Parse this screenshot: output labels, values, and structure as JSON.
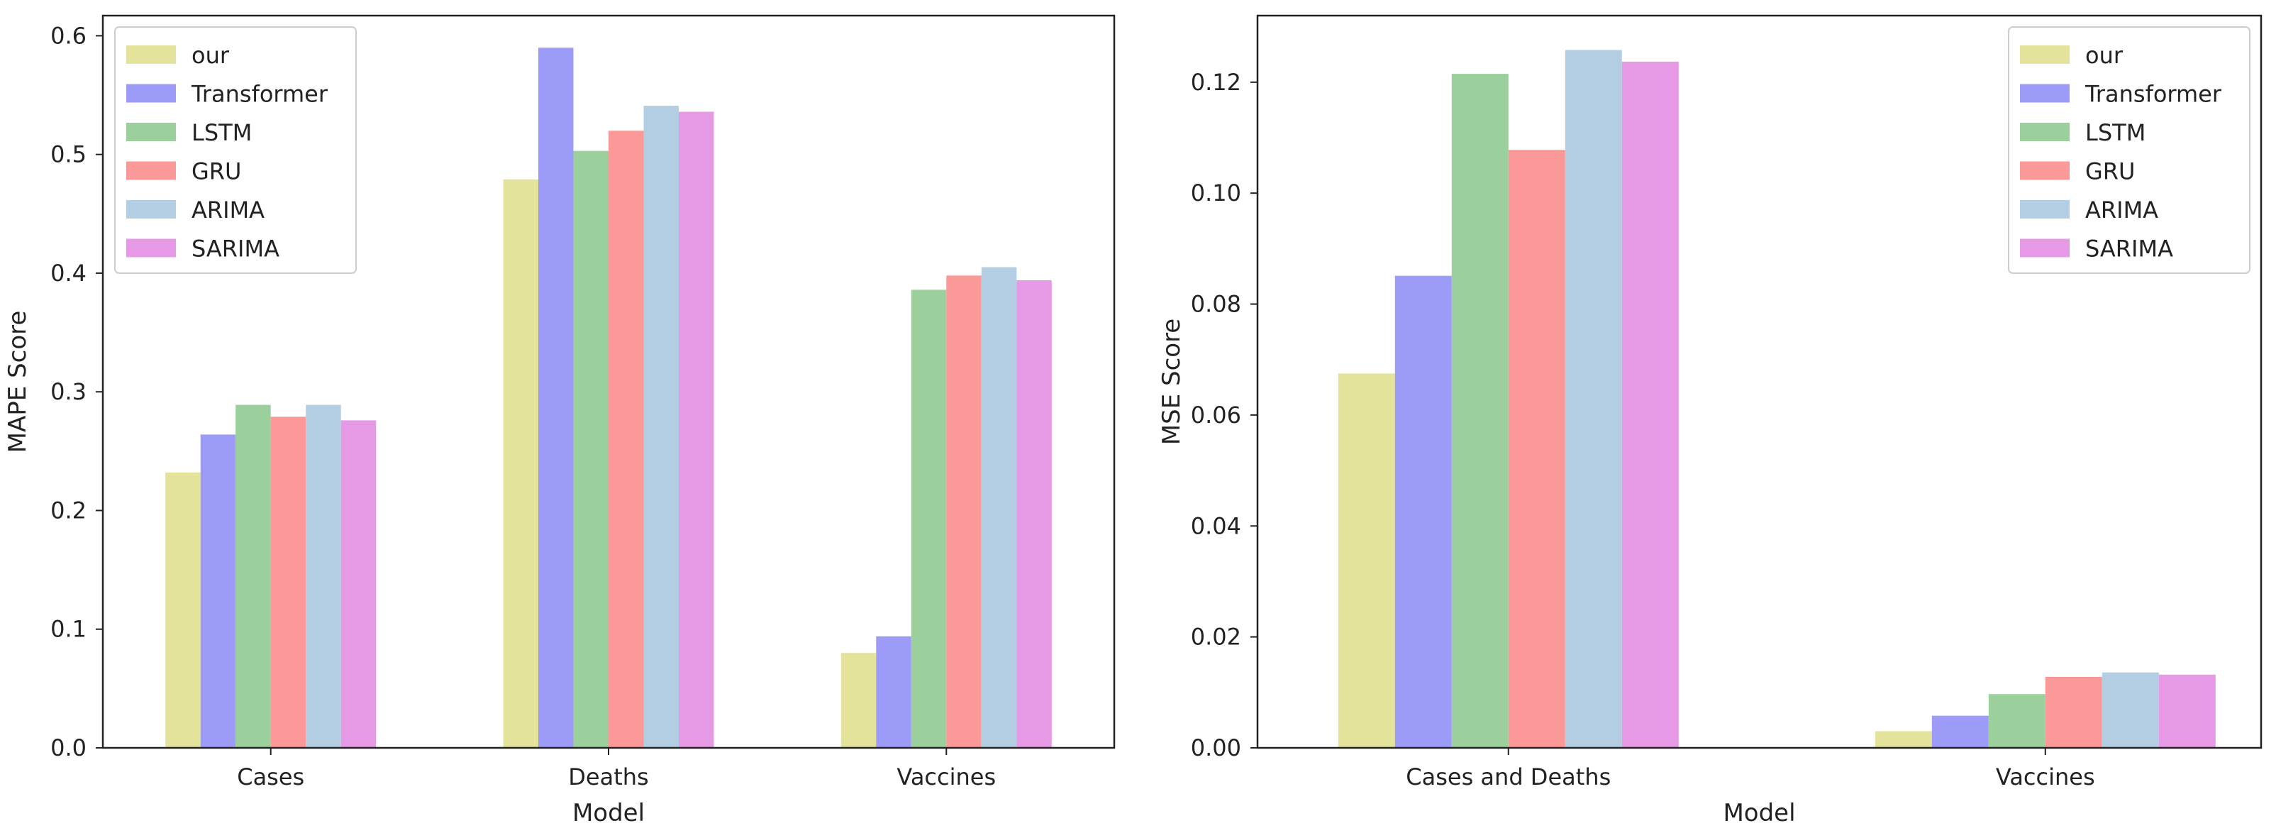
{
  "legend": {
    "entries": [
      {
        "name": "our",
        "color": "#e3e39b"
      },
      {
        "name": " Transformer",
        "color": "#9c9cf8"
      },
      {
        "name": "LSTM",
        "color": "#9bcf9b"
      },
      {
        "name": "GRU",
        "color": "#fb9999"
      },
      {
        "name": "ARIMA",
        "color": "#b3cde2"
      },
      {
        "name": "SARIMA",
        "color": "#e69ae5"
      }
    ]
  },
  "chart_data": [
    {
      "type": "bar",
      "title": "",
      "xlabel": "Model",
      "ylabel": "MAPE Score",
      "ylim": [
        0,
        0.617
      ],
      "yticks": [
        0.0,
        0.1,
        0.2,
        0.3,
        0.4,
        0.5,
        0.6
      ],
      "ytick_labels": [
        "0.0",
        "0.1",
        "0.2",
        "0.3",
        "0.4",
        "0.5",
        "0.6"
      ],
      "categories": [
        "Cases",
        "Deaths",
        "Vaccines"
      ],
      "series": [
        {
          "name": "our",
          "values": [
            0.232,
            0.479,
            0.08
          ]
        },
        {
          "name": " Transformer",
          "values": [
            0.264,
            0.59,
            0.094
          ]
        },
        {
          "name": "LSTM",
          "values": [
            0.289,
            0.503,
            0.386
          ]
        },
        {
          "name": "GRU",
          "values": [
            0.279,
            0.52,
            0.398
          ]
        },
        {
          "name": "ARIMA",
          "values": [
            0.289,
            0.541,
            0.405
          ]
        },
        {
          "name": "SARIMA",
          "values": [
            0.276,
            0.536,
            0.394
          ]
        }
      ],
      "legend_position": "top-left",
      "grid": false
    },
    {
      "type": "bar",
      "title": "",
      "xlabel": "Model",
      "ylabel": "MSE Score",
      "ylim": [
        0,
        0.132
      ],
      "yticks": [
        0.0,
        0.02,
        0.04,
        0.06,
        0.08,
        0.1,
        0.12
      ],
      "ytick_labels": [
        "0.00",
        "0.02",
        "0.04",
        "0.06",
        "0.08",
        "0.10",
        "0.12"
      ],
      "categories": [
        "Cases and Deaths",
        "Vaccines"
      ],
      "series": [
        {
          "name": "our",
          "values": [
            0.0675,
            0.003
          ]
        },
        {
          "name": " Transformer",
          "values": [
            0.0851,
            0.0058
          ]
        },
        {
          "name": "LSTM",
          "values": [
            0.1215,
            0.0097
          ]
        },
        {
          "name": "GRU",
          "values": [
            0.1078,
            0.0128
          ]
        },
        {
          "name": "ARIMA",
          "values": [
            0.1258,
            0.0136
          ]
        },
        {
          "name": "SARIMA",
          "values": [
            0.1237,
            0.0132
          ]
        }
      ],
      "legend_position": "top-right",
      "grid": false
    }
  ]
}
